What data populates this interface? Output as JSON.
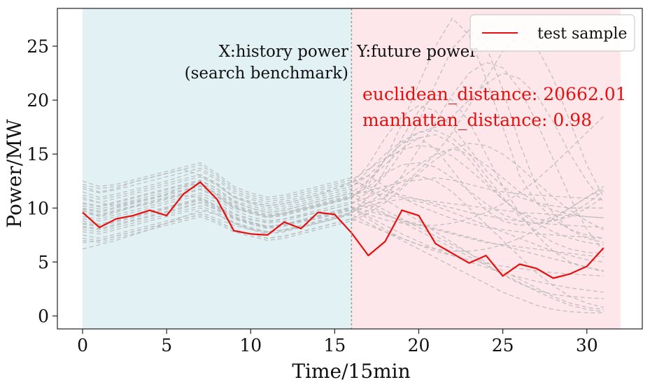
{
  "chart_data": {
    "type": "line",
    "xlabel": "Time/15min",
    "ylabel": "Power/MW",
    "xlim": [
      -1.5,
      33.3
    ],
    "ylim": [
      -1.2,
      28.5
    ],
    "xticks": [
      0,
      5,
      10,
      15,
      20,
      25,
      30
    ],
    "yticks": [
      0,
      5,
      10,
      15,
      20,
      25
    ],
    "grid": false,
    "legend_position": "top-right",
    "regions": [
      {
        "name": "history",
        "x_start": 0,
        "x_end": 16,
        "color": "#e2f1f4"
      },
      {
        "name": "future",
        "x_start": 16,
        "x_end": 32,
        "color": "#fde7ea"
      }
    ],
    "divider_x": 16,
    "annotations": {
      "history_label_line1": "X:history power",
      "history_label_line2": "(search benchmark)",
      "future_label": "Y:future power",
      "euclidean": "euclidean_distance: 20662.01",
      "manhattan": "manhattan_distance: 0.98"
    },
    "series": [
      {
        "name": "test sample",
        "color": "#e8100f",
        "x": [
          0,
          1,
          2,
          3,
          4,
          5,
          6,
          7,
          8,
          9,
          10,
          11,
          12,
          13,
          14,
          15,
          16,
          17,
          18,
          19,
          20,
          21,
          22,
          23,
          24,
          25,
          26,
          27,
          28,
          29,
          30,
          31
        ],
        "values": [
          9.6,
          8.2,
          9.0,
          9.3,
          9.8,
          9.3,
          11.3,
          12.4,
          10.8,
          7.9,
          7.6,
          7.5,
          8.7,
          8.1,
          9.6,
          9.4,
          7.7,
          5.6,
          6.9,
          9.8,
          9.3,
          6.7,
          5.8,
          4.9,
          5.6,
          3.7,
          4.8,
          4.4,
          3.5,
          3.9,
          4.6,
          6.3
        ]
      }
    ],
    "background_series_color": "#b7b7b7",
    "background_series": [
      [
        9.8,
        9.2,
        9.6,
        10.1,
        10.4,
        10.8,
        11.2,
        11.0,
        10.2,
        9.4,
        8.9,
        8.7,
        9.0,
        9.3,
        9.6,
        10.0,
        10.4,
        11.5,
        13.0,
        15.2,
        18.0,
        21.5,
        24.8,
        26.5,
        25.0,
        21.0,
        16.0,
        12.0,
        9.5,
        8.0,
        7.2,
        6.8
      ],
      [
        11.0,
        10.5,
        10.2,
        10.6,
        10.9,
        11.3,
        12.0,
        12.4,
        11.2,
        10.0,
        9.6,
        9.2,
        9.5,
        9.9,
        10.2,
        10.6,
        11.0,
        12.2,
        14.5,
        17.8,
        21.5,
        25.0,
        27.6,
        26.0,
        22.0,
        17.5,
        13.0,
        10.5,
        9.0,
        8.0,
        7.5,
        7.2
      ],
      [
        8.2,
        8.0,
        8.4,
        8.8,
        9.2,
        9.6,
        10.0,
        10.5,
        9.8,
        9.0,
        8.6,
        8.2,
        8.5,
        8.8,
        9.0,
        9.4,
        9.8,
        10.5,
        11.0,
        12.0,
        13.5,
        15.0,
        17.0,
        19.5,
        22.0,
        24.5,
        26.0,
        25.0,
        22.0,
        18.0,
        14.0,
        11.0
      ],
      [
        12.0,
        11.5,
        11.8,
        12.4,
        12.8,
        13.2,
        13.6,
        13.0,
        12.2,
        11.0,
        10.5,
        10.2,
        10.4,
        10.8,
        11.2,
        11.8,
        12.4,
        13.0,
        12.0,
        11.0,
        10.2,
        9.6,
        9.0,
        8.6,
        8.2,
        8.0,
        7.8,
        7.6,
        7.5,
        7.4,
        7.3,
        7.2
      ],
      [
        7.5,
        7.2,
        7.6,
        8.0,
        8.4,
        8.8,
        9.2,
        9.6,
        9.0,
        8.4,
        8.0,
        7.8,
        8.0,
        8.2,
        8.6,
        9.0,
        9.4,
        8.6,
        7.8,
        7.0,
        6.2,
        5.4,
        4.6,
        3.8,
        3.0,
        2.2,
        1.6,
        1.0,
        0.6,
        0.4,
        0.3,
        0.3
      ],
      [
        10.5,
        10.2,
        10.6,
        11.0,
        11.4,
        11.8,
        12.2,
        12.6,
        11.8,
        10.6,
        10.0,
        9.6,
        9.8,
        10.2,
        10.6,
        11.0,
        11.4,
        12.6,
        14.0,
        15.5,
        16.5,
        16.8,
        16.0,
        14.5,
        12.5,
        10.8,
        9.6,
        9.0,
        8.8,
        9.2,
        10.0,
        11.0
      ],
      [
        9.2,
        9.0,
        9.4,
        9.8,
        10.2,
        10.6,
        11.0,
        11.4,
        10.8,
        9.8,
        9.2,
        8.8,
        9.0,
        9.4,
        9.8,
        10.2,
        10.6,
        10.0,
        9.4,
        8.8,
        8.4,
        8.0,
        7.6,
        7.2,
        6.8,
        6.6,
        6.4,
        6.2,
        6.0,
        5.8,
        5.6,
        5.5
      ],
      [
        6.2,
        6.6,
        7.0,
        7.5,
        8.0,
        8.6,
        9.2,
        9.8,
        9.4,
        8.6,
        8.0,
        7.6,
        7.8,
        8.2,
        8.6,
        9.0,
        9.6,
        10.5,
        11.5,
        12.5,
        13.0,
        12.5,
        11.5,
        10.0,
        8.5,
        7.0,
        5.5,
        4.0,
        2.8,
        1.8,
        1.2,
        0.8
      ],
      [
        11.5,
        11.0,
        11.3,
        11.7,
        12.1,
        12.5,
        13.0,
        13.5,
        12.6,
        11.4,
        10.8,
        10.4,
        10.6,
        11.0,
        11.4,
        11.8,
        12.2,
        14.0,
        16.5,
        18.5,
        19.5,
        19.0,
        17.5,
        15.5,
        13.5,
        12.0,
        11.0,
        10.5,
        10.2,
        10.0,
        10.0,
        10.0
      ],
      [
        8.8,
        8.5,
        8.9,
        9.3,
        9.7,
        10.1,
        10.5,
        10.9,
        10.2,
        9.2,
        8.7,
        8.3,
        8.5,
        8.9,
        9.3,
        9.7,
        10.1,
        9.2,
        8.4,
        7.6,
        6.9,
        6.2,
        5.6,
        5.0,
        4.5,
        4.0,
        3.6,
        3.2,
        2.9,
        2.6,
        2.4,
        2.2
      ],
      [
        10.0,
        9.7,
        10.1,
        10.5,
        10.9,
        11.3,
        11.7,
        12.1,
        11.4,
        10.3,
        9.8,
        9.4,
        9.6,
        10.0,
        10.4,
        10.8,
        11.2,
        11.6,
        12.0,
        12.4,
        12.6,
        12.8,
        12.6,
        12.2,
        11.8,
        11.5,
        11.3,
        11.2,
        11.1,
        11.0,
        10.9,
        10.8
      ],
      [
        7.8,
        7.6,
        8.0,
        8.4,
        8.8,
        9.2,
        9.6,
        10.0,
        9.4,
        8.6,
        8.1,
        7.7,
        7.9,
        8.3,
        8.7,
        9.1,
        9.5,
        11.0,
        13.5,
        16.5,
        19.0,
        20.5,
        20.0,
        18.0,
        15.0,
        12.0,
        9.5,
        7.5,
        6.0,
        5.0,
        4.5,
        4.2
      ],
      [
        12.5,
        12.0,
        12.2,
        12.6,
        13.0,
        13.4,
        13.8,
        14.2,
        13.2,
        12.0,
        11.4,
        11.0,
        11.2,
        11.6,
        12.0,
        12.4,
        12.8,
        11.8,
        10.8,
        9.8,
        8.8,
        7.8,
        6.8,
        5.8,
        4.8,
        3.8,
        3.0,
        2.4,
        2.0,
        1.8,
        1.7,
        1.6
      ],
      [
        9.5,
        9.3,
        9.7,
        10.1,
        10.5,
        10.9,
        11.3,
        11.7,
        11.0,
        10.0,
        9.5,
        9.1,
        9.3,
        9.7,
        10.1,
        10.5,
        10.9,
        12.5,
        14.5,
        16.0,
        16.5,
        15.5,
        13.5,
        11.5,
        9.8,
        8.8,
        8.4,
        8.6,
        9.2,
        10.0,
        11.0,
        12.0
      ],
      [
        6.8,
        7.0,
        7.4,
        7.8,
        8.2,
        8.6,
        9.0,
        9.4,
        8.8,
        8.0,
        7.6,
        7.2,
        7.4,
        7.8,
        8.2,
        8.6,
        9.0,
        8.4,
        7.8,
        7.2,
        6.6,
        6.0,
        5.6,
        5.2,
        4.9,
        4.6,
        4.4,
        4.2,
        4.0,
        3.9,
        3.8,
        3.7
      ],
      [
        10.8,
        10.5,
        10.9,
        11.3,
        11.7,
        12.1,
        12.5,
        12.9,
        12.1,
        11.0,
        10.4,
        10.0,
        10.2,
        10.6,
        11.0,
        11.4,
        11.8,
        13.5,
        15.0,
        16.2,
        17.0,
        17.5,
        18.5,
        20.0,
        21.5,
        22.5,
        22.0,
        20.5,
        18.0,
        15.0,
        12.5,
        10.5
      ],
      [
        8.5,
        8.3,
        8.7,
        9.1,
        9.5,
        9.9,
        10.3,
        10.7,
        10.0,
        9.1,
        8.6,
        8.2,
        8.4,
        8.8,
        9.2,
        9.6,
        10.0,
        9.0,
        8.0,
        7.2,
        6.6,
        6.2,
        6.0,
        6.0,
        6.2,
        6.6,
        7.2,
        8.0,
        9.0,
        10.0,
        11.0,
        11.8
      ],
      [
        9.0,
        8.8,
        9.2,
        9.6,
        10.0,
        10.4,
        10.8,
        11.2,
        10.5,
        9.5,
        9.0,
        8.6,
        8.8,
        9.2,
        9.6,
        10.0,
        10.4,
        11.0,
        11.8,
        12.8,
        14.0,
        15.0,
        15.5,
        15.0,
        14.0,
        12.8,
        11.5,
        10.5,
        9.8,
        9.4,
        9.2,
        9.1
      ],
      [
        11.8,
        11.4,
        11.7,
        12.1,
        12.5,
        12.9,
        13.3,
        13.7,
        12.8,
        11.6,
        11.0,
        10.6,
        10.8,
        11.2,
        11.6,
        12.0,
        12.4,
        12.0,
        11.6,
        11.2,
        10.8,
        10.4,
        10.0,
        9.6,
        9.3,
        9.0,
        8.8,
        8.6,
        8.5,
        8.4,
        8.3,
        8.2
      ],
      [
        7.2,
        7.0,
        7.4,
        7.8,
        8.2,
        8.6,
        9.0,
        9.4,
        8.8,
        8.0,
        7.6,
        7.2,
        7.4,
        7.8,
        8.2,
        8.6,
        9.0,
        9.8,
        11.0,
        13.0,
        15.5,
        18.0,
        20.5,
        22.5,
        23.5,
        23.0,
        21.0,
        18.0,
        14.5,
        11.0,
        8.0,
        6.0
      ],
      [
        10.2,
        9.9,
        10.3,
        10.7,
        11.1,
        11.5,
        11.9,
        12.3,
        11.6,
        10.5,
        10.0,
        9.6,
        9.8,
        10.2,
        10.6,
        11.0,
        11.4,
        10.6,
        9.8,
        9.0,
        8.2,
        7.4,
        6.6,
        5.8,
        5.0,
        4.2,
        3.4,
        2.6,
        1.8,
        1.2,
        0.8,
        0.6
      ],
      [
        9.7,
        9.4,
        9.8,
        10.2,
        10.6,
        11.0,
        11.4,
        11.8,
        11.1,
        10.1,
        9.6,
        9.2,
        9.4,
        9.8,
        10.2,
        10.6,
        11.0,
        12.0,
        13.2,
        14.0,
        14.2,
        13.8,
        12.8,
        11.6,
        10.4,
        9.4,
        8.8,
        8.6,
        8.8,
        9.4,
        10.4,
        11.6
      ],
      [
        8.0,
        7.8,
        8.2,
        8.6,
        9.0,
        9.4,
        9.8,
        10.2,
        9.6,
        8.7,
        8.2,
        7.8,
        8.0,
        8.4,
        8.8,
        9.2,
        9.6,
        10.2,
        10.6,
        10.8,
        10.6,
        10.2,
        9.6,
        9.0,
        8.4,
        7.8,
        7.2,
        6.6,
        6.0,
        5.6,
        5.2,
        5.0
      ],
      [
        11.2,
        10.8,
        11.1,
        11.5,
        11.9,
        12.3,
        12.7,
        13.1,
        12.3,
        11.1,
        10.6,
        10.2,
        10.4,
        10.8,
        11.2,
        11.6,
        12.0,
        13.0,
        14.5,
        16.0,
        17.0,
        17.2,
        16.5,
        15.0,
        13.0,
        11.0,
        9.2,
        7.8,
        6.8,
        6.2,
        5.9,
        5.8
      ],
      [
        10.4,
        10.1,
        10.5,
        10.9,
        11.3,
        11.7,
        12.1,
        12.5,
        11.8,
        10.7,
        10.2,
        9.8,
        10.0,
        10.4,
        10.8,
        11.2,
        11.6,
        11.4,
        11.2,
        11.0,
        10.8,
        10.6,
        10.4,
        10.2,
        10.0,
        9.8,
        9.6,
        9.5,
        9.4,
        9.3,
        9.2,
        9.1
      ],
      [
        8.3,
        8.1,
        8.5,
        8.9,
        9.3,
        9.7,
        10.1,
        10.5,
        9.9,
        9.0,
        8.5,
        8.1,
        8.3,
        8.7,
        9.1,
        9.5,
        9.9,
        9.4,
        8.9,
        8.6,
        8.4,
        8.4,
        8.6,
        9.0,
        9.6,
        10.4,
        11.4,
        12.6,
        14.0,
        15.5,
        17.0,
        18.5
      ],
      [
        9.9,
        9.6,
        10.0,
        10.4,
        10.8,
        11.2,
        11.6,
        12.0,
        11.3,
        10.2,
        9.7,
        9.3,
        9.5,
        9.9,
        10.3,
        10.7,
        11.1,
        10.3,
        9.5,
        8.7,
        7.9,
        7.1,
        6.3,
        5.5,
        4.7,
        3.9,
        3.1,
        2.3,
        1.6,
        1.0,
        0.6,
        0.4
      ],
      [
        7.0,
        6.8,
        7.2,
        7.6,
        8.0,
        8.4,
        8.8,
        9.2,
        8.6,
        7.8,
        7.4,
        7.0,
        7.2,
        7.6,
        8.0,
        8.4,
        8.8,
        9.5,
        10.5,
        11.8,
        13.2,
        14.5,
        15.5,
        16.0,
        15.8,
        15.0,
        13.8,
        12.4,
        11.0,
        9.8,
        8.8,
        8.0
      ],
      [
        12.2,
        11.8,
        12.0,
        12.4,
        12.8,
        13.2,
        13.6,
        14.0,
        13.0,
        11.8,
        11.2,
        10.8,
        11.0,
        11.4,
        11.8,
        12.2,
        12.6,
        13.6,
        14.6,
        15.4,
        15.8,
        15.6,
        14.8,
        13.6,
        12.2,
        10.8,
        9.6,
        8.6,
        7.8,
        7.2,
        6.8,
        6.6
      ],
      [
        8.6,
        8.4,
        8.8,
        9.2,
        9.6,
        10.0,
        10.4,
        10.8,
        10.1,
        9.2,
        8.7,
        8.3,
        8.5,
        8.9,
        9.3,
        9.7,
        10.1,
        9.7,
        9.3,
        8.9,
        8.5,
        8.1,
        7.7,
        7.3,
        6.9,
        6.5,
        6.1,
        5.7,
        5.3,
        4.9,
        4.5,
        4.1
      ]
    ]
  }
}
